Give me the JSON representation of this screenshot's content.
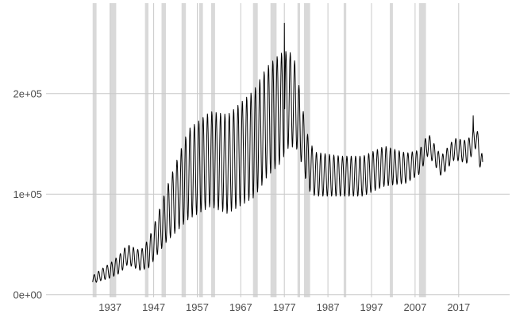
{
  "chart_data": {
    "type": "line",
    "title": "",
    "xlabel": "",
    "ylabel": "",
    "x_ticks": [
      1937,
      1947,
      1957,
      1967,
      1977,
      1987,
      1997,
      2007,
      2017
    ],
    "x_tick_labels": [
      "1937",
      "1947",
      "1957",
      "1967",
      "1977",
      "1987",
      "1997",
      "2007",
      "2017"
    ],
    "y_ticks": [
      0,
      100000,
      200000
    ],
    "y_tick_labels": [
      "0e+00",
      "1e+05",
      "2e+05"
    ],
    "xlim": [
      1922.3,
      2028.7
    ],
    "ylim": [
      -2500,
      290000
    ],
    "grid": true,
    "legend": "none",
    "colors": {
      "line": "#000000",
      "shading": "#d9d9d9",
      "grid": "#c9c9c9"
    },
    "recessions": [
      [
        1933.0,
        1933.9
      ],
      [
        1937.0,
        1938.4
      ],
      [
        1945.0,
        1945.8
      ],
      [
        1948.8,
        1949.8
      ],
      [
        1953.4,
        1954.4
      ],
      [
        1957.4,
        1958.3
      ],
      [
        1960.2,
        1961.1
      ],
      [
        1969.8,
        1970.9
      ],
      [
        1973.8,
        1975.2
      ],
      [
        1980.0,
        1980.6
      ],
      [
        1981.5,
        1982.9
      ],
      [
        1990.6,
        1991.2
      ],
      [
        2001.2,
        2001.9
      ],
      [
        2007.9,
        2009.5
      ]
    ],
    "series": [
      {
        "anchors": [
          [
            1933.0,
            15000
          ],
          [
            1935.0,
            20000
          ],
          [
            1937.0,
            24000
          ],
          [
            1939.0,
            30000
          ],
          [
            1941.0,
            40000
          ],
          [
            1944.0,
            34000
          ],
          [
            1946.0,
            42000
          ],
          [
            1950.0,
            80000
          ],
          [
            1955.0,
            120000
          ],
          [
            1960.0,
            135000
          ],
          [
            1964.0,
            130000
          ],
          [
            1970.0,
            150000
          ],
          [
            1973.0,
            172000
          ],
          [
            1976.0,
            185000
          ],
          [
            1978.0,
            195000
          ],
          [
            1979.5,
            190000
          ],
          [
            1981.0,
            160000
          ],
          [
            1982.5,
            130000
          ],
          [
            1984.0,
            120000
          ],
          [
            1990.0,
            118000
          ],
          [
            1995.0,
            118000
          ],
          [
            2000.0,
            128000
          ],
          [
            2005.0,
            126000
          ],
          [
            2008.0,
            132000
          ],
          [
            2010.0,
            150000
          ],
          [
            2013.0,
            128000
          ],
          [
            2016.0,
            145000
          ],
          [
            2019.0,
            142000
          ],
          [
            2021.0,
            158000
          ],
          [
            2022.5,
            125000
          ]
        ],
        "amp_anchors": [
          [
            1933.0,
            4000
          ],
          [
            1940.0,
            10000
          ],
          [
            1944.0,
            10000
          ],
          [
            1948.0,
            20000
          ],
          [
            1955.0,
            45000
          ],
          [
            1965.0,
            50000
          ],
          [
            1972.0,
            55000
          ],
          [
            1976.0,
            55000
          ],
          [
            1979.0,
            45000
          ],
          [
            1981.0,
            30000
          ],
          [
            1984.0,
            22000
          ],
          [
            1990.0,
            20000
          ],
          [
            2000.0,
            20000
          ],
          [
            2008.0,
            12000
          ],
          [
            2012.0,
            10000
          ],
          [
            2022.5,
            12000
          ]
        ],
        "peaks": [
          [
            1977.0,
            270000
          ],
          [
            2020.3,
            178000
          ]
        ]
      }
    ]
  }
}
